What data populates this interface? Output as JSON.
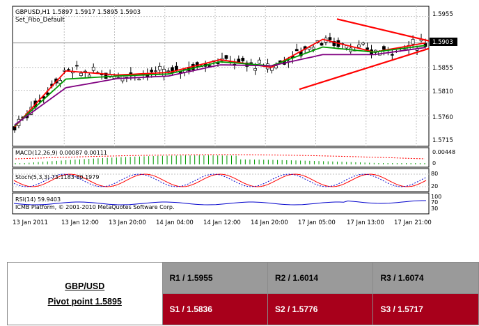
{
  "chart": {
    "header_line1": "GBPUSD,H1  1.5897 1.5917 1.5895 1.5903",
    "header_line2": "Set_Fibo_Default",
    "price_ticks": [
      "1.5955",
      "1.5855",
      "1.5810",
      "1.5760",
      "1.5715"
    ],
    "current_price": "1.5903",
    "time_labels": [
      "13 Jan 2011",
      "13 Jan 12:00",
      "13 Jan 20:00",
      "14 Jan 04:00",
      "14 Jan 12:00",
      "14 Jan 20:00",
      "17 Jan 05:00",
      "17 Jan 13:00",
      "17 Jan 21:00"
    ],
    "macd_label": "MACD(12,26,9) 0.00087 0.00111",
    "macd_ticks": [
      "0.00448",
      "0"
    ],
    "stoch_label": "Stoch(5,3,3) 73.1183 60.1979",
    "stoch_ticks": [
      "80",
      "20"
    ],
    "rsi_label": "RSI(14) 59.9403",
    "rsi_ticks": [
      "100",
      "70",
      "30"
    ],
    "copyright": "ICMB Platform, © 2001-2010 MetaQuotes Software Corp.",
    "colors": {
      "fast_ma": "#ff0000",
      "mid_ma": "#009900",
      "slow_ma": "#800080",
      "trendline": "#ff0000",
      "grid": "#c0c0c0"
    }
  },
  "chart_data": {
    "type": "line",
    "title": "GBPUSD,H1",
    "xlabel": "",
    "ylabel": "",
    "ylim": [
      1.57,
      1.5975
    ],
    "x": [
      "13 Jan 2011",
      "13 Jan 12:00",
      "13 Jan 20:00",
      "14 Jan 04:00",
      "14 Jan 12:00",
      "14 Jan 20:00",
      "17 Jan 05:00",
      "17 Jan 13:00",
      "17 Jan 21:00"
    ],
    "series": [
      {
        "values": [
          1.5738,
          1.5848,
          1.584,
          1.5845,
          1.587,
          1.5855,
          1.591,
          1.5885,
          1.5903
        ]
      },
      {
        "values": [
          1.574,
          1.5832,
          1.5838,
          1.5842,
          1.5866,
          1.5858,
          1.5895,
          1.5885,
          1.5898
        ]
      },
      {
        "values": [
          1.5742,
          1.5815,
          1.5833,
          1.5838,
          1.586,
          1.5858,
          1.588,
          1.588,
          1.5894
        ]
      }
    ]
  },
  "pivot": {
    "pair": "GBP/USD",
    "pivot_label": "Pivot point 1.5895",
    "r1": "R1 / 1.5955",
    "r2": "R2 / 1.6014",
    "r3": "R3 / 1.6074",
    "s1": "S1 / 1.5836",
    "s2": "S2 / 1.5776",
    "s3": "S3 / 1.5717"
  }
}
